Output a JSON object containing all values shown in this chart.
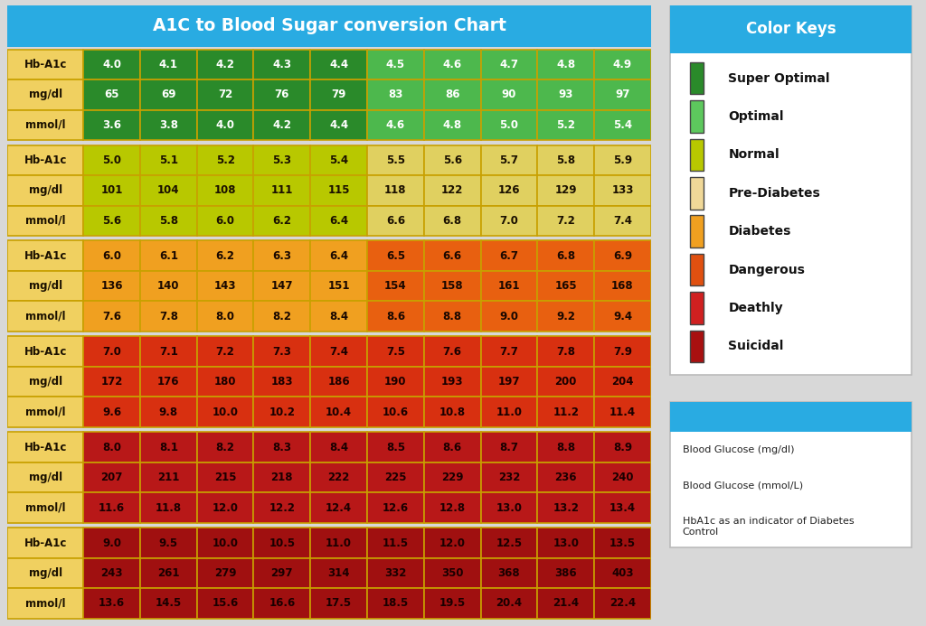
{
  "title": "A1C to Blood Sugar conversion Chart",
  "color_keys_title": "Color Keys",
  "bg_color": "#d8d8d8",
  "header_color": "#29abe2",
  "header_text_color": "#ffffff",
  "label_col_color": "#f0d060",
  "sections": [
    {
      "label": "Super Optimal",
      "cell_colors": [
        "#2a8a2a",
        "#2a8a2a",
        "#2a8a2a",
        "#2a8a2a",
        "#2a8a2a",
        "#4db84d",
        "#4db84d",
        "#4db84d",
        "#4db84d",
        "#4db84d"
      ],
      "text_color": "#ffffff",
      "hba1c": [
        "4.0",
        "4.1",
        "4.2",
        "4.3",
        "4.4",
        "4.5",
        "4.6",
        "4.7",
        "4.8",
        "4.9"
      ],
      "mgdl": [
        "65",
        "69",
        "72",
        "76",
        "79",
        "83",
        "86",
        "90",
        "93",
        "97"
      ],
      "mmol": [
        "3.6",
        "3.8",
        "4.0",
        "4.2",
        "4.4",
        "4.6",
        "4.8",
        "5.0",
        "5.2",
        "5.4"
      ]
    },
    {
      "label": "Normal",
      "cell_colors": [
        "#b8c800",
        "#b8c800",
        "#b8c800",
        "#b8c800",
        "#b8c800",
        "#e0d060",
        "#e0d060",
        "#e0d060",
        "#e0d060",
        "#e0d060"
      ],
      "text_color": "#1a1000",
      "hba1c": [
        "5.0",
        "5.1",
        "5.2",
        "5.3",
        "5.4",
        "5.5",
        "5.6",
        "5.7",
        "5.8",
        "5.9"
      ],
      "mgdl": [
        "101",
        "104",
        "108",
        "111",
        "115",
        "118",
        "122",
        "126",
        "129",
        "133"
      ],
      "mmol": [
        "5.6",
        "5.8",
        "6.0",
        "6.2",
        "6.4",
        "6.6",
        "6.8",
        "7.0",
        "7.2",
        "7.4"
      ]
    },
    {
      "label": "Pre-Diabetes",
      "cell_colors": [
        "#f0a020",
        "#f0a020",
        "#f0a020",
        "#f0a020",
        "#f0a020",
        "#e86010",
        "#e86010",
        "#e86010",
        "#e86010",
        "#e86010"
      ],
      "text_color": "#1a0800",
      "hba1c": [
        "6.0",
        "6.1",
        "6.2",
        "6.3",
        "6.4",
        "6.5",
        "6.6",
        "6.7",
        "6.8",
        "6.9"
      ],
      "mgdl": [
        "136",
        "140",
        "143",
        "147",
        "151",
        "154",
        "158",
        "161",
        "165",
        "168"
      ],
      "mmol": [
        "7.6",
        "7.8",
        "8.0",
        "8.2",
        "8.4",
        "8.6",
        "8.8",
        "9.0",
        "9.2",
        "9.4"
      ]
    },
    {
      "label": "Diabetes",
      "cell_colors": [
        "#d83010",
        "#d83010",
        "#d83010",
        "#d83010",
        "#d83010",
        "#d83010",
        "#d83010",
        "#d83010",
        "#d83010",
        "#d83010"
      ],
      "text_color": "#1a0000",
      "hba1c": [
        "7.0",
        "7.1",
        "7.2",
        "7.3",
        "7.4",
        "7.5",
        "7.6",
        "7.7",
        "7.8",
        "7.9"
      ],
      "mgdl": [
        "172",
        "176",
        "180",
        "183",
        "186",
        "190",
        "193",
        "197",
        "200",
        "204"
      ],
      "mmol": [
        "9.6",
        "9.8",
        "10.0",
        "10.2",
        "10.4",
        "10.6",
        "10.8",
        "11.0",
        "11.2",
        "11.4"
      ]
    },
    {
      "label": "Deathly",
      "cell_colors": [
        "#b81818",
        "#b81818",
        "#b81818",
        "#b81818",
        "#b81818",
        "#b81818",
        "#b81818",
        "#b81818",
        "#b81818",
        "#b81818"
      ],
      "text_color": "#1a0000",
      "hba1c": [
        "8.0",
        "8.1",
        "8.2",
        "8.3",
        "8.4",
        "8.5",
        "8.6",
        "8.7",
        "8.8",
        "8.9"
      ],
      "mgdl": [
        "207",
        "211",
        "215",
        "218",
        "222",
        "225",
        "229",
        "232",
        "236",
        "240"
      ],
      "mmol": [
        "11.6",
        "11.8",
        "12.0",
        "12.2",
        "12.4",
        "12.6",
        "12.8",
        "13.0",
        "13.2",
        "13.4"
      ]
    },
    {
      "label": "Suicidal",
      "cell_colors": [
        "#a01010",
        "#a01010",
        "#a01010",
        "#a01010",
        "#a01010",
        "#a01010",
        "#a01010",
        "#a01010",
        "#a01010",
        "#a01010"
      ],
      "text_color": "#1a0000",
      "hba1c": [
        "9.0",
        "9.5",
        "10.0",
        "10.5",
        "11.0",
        "11.5",
        "12.0",
        "12.5",
        "13.0",
        "13.5"
      ],
      "mgdl": [
        "243",
        "261",
        "279",
        "297",
        "314",
        "332",
        "350",
        "368",
        "386",
        "403"
      ],
      "mmol": [
        "13.6",
        "14.5",
        "15.6",
        "16.6",
        "17.5",
        "18.5",
        "19.5",
        "20.4",
        "21.4",
        "22.4"
      ]
    }
  ],
  "color_key_items": [
    {
      "label": "Super Optimal",
      "color": "#2a8a2a"
    },
    {
      "label": "Optimal",
      "color": "#5dc85d"
    },
    {
      "label": "Normal",
      "color": "#b8c800"
    },
    {
      "label": "Pre-Diabetes",
      "color": "#f0d898"
    },
    {
      "label": "Diabetes",
      "color": "#f0a020"
    },
    {
      "label": "Dangerous",
      "color": "#e05010"
    },
    {
      "label": "Deathly",
      "color": "#d02020"
    },
    {
      "label": "Suicidal",
      "color": "#a81010"
    }
  ],
  "info_lines": [
    "Blood Glucose (mg/dl)",
    "Blood Glucose (mmol/L)",
    "HbA1c as an indicator of Diabetes\nControl"
  ]
}
